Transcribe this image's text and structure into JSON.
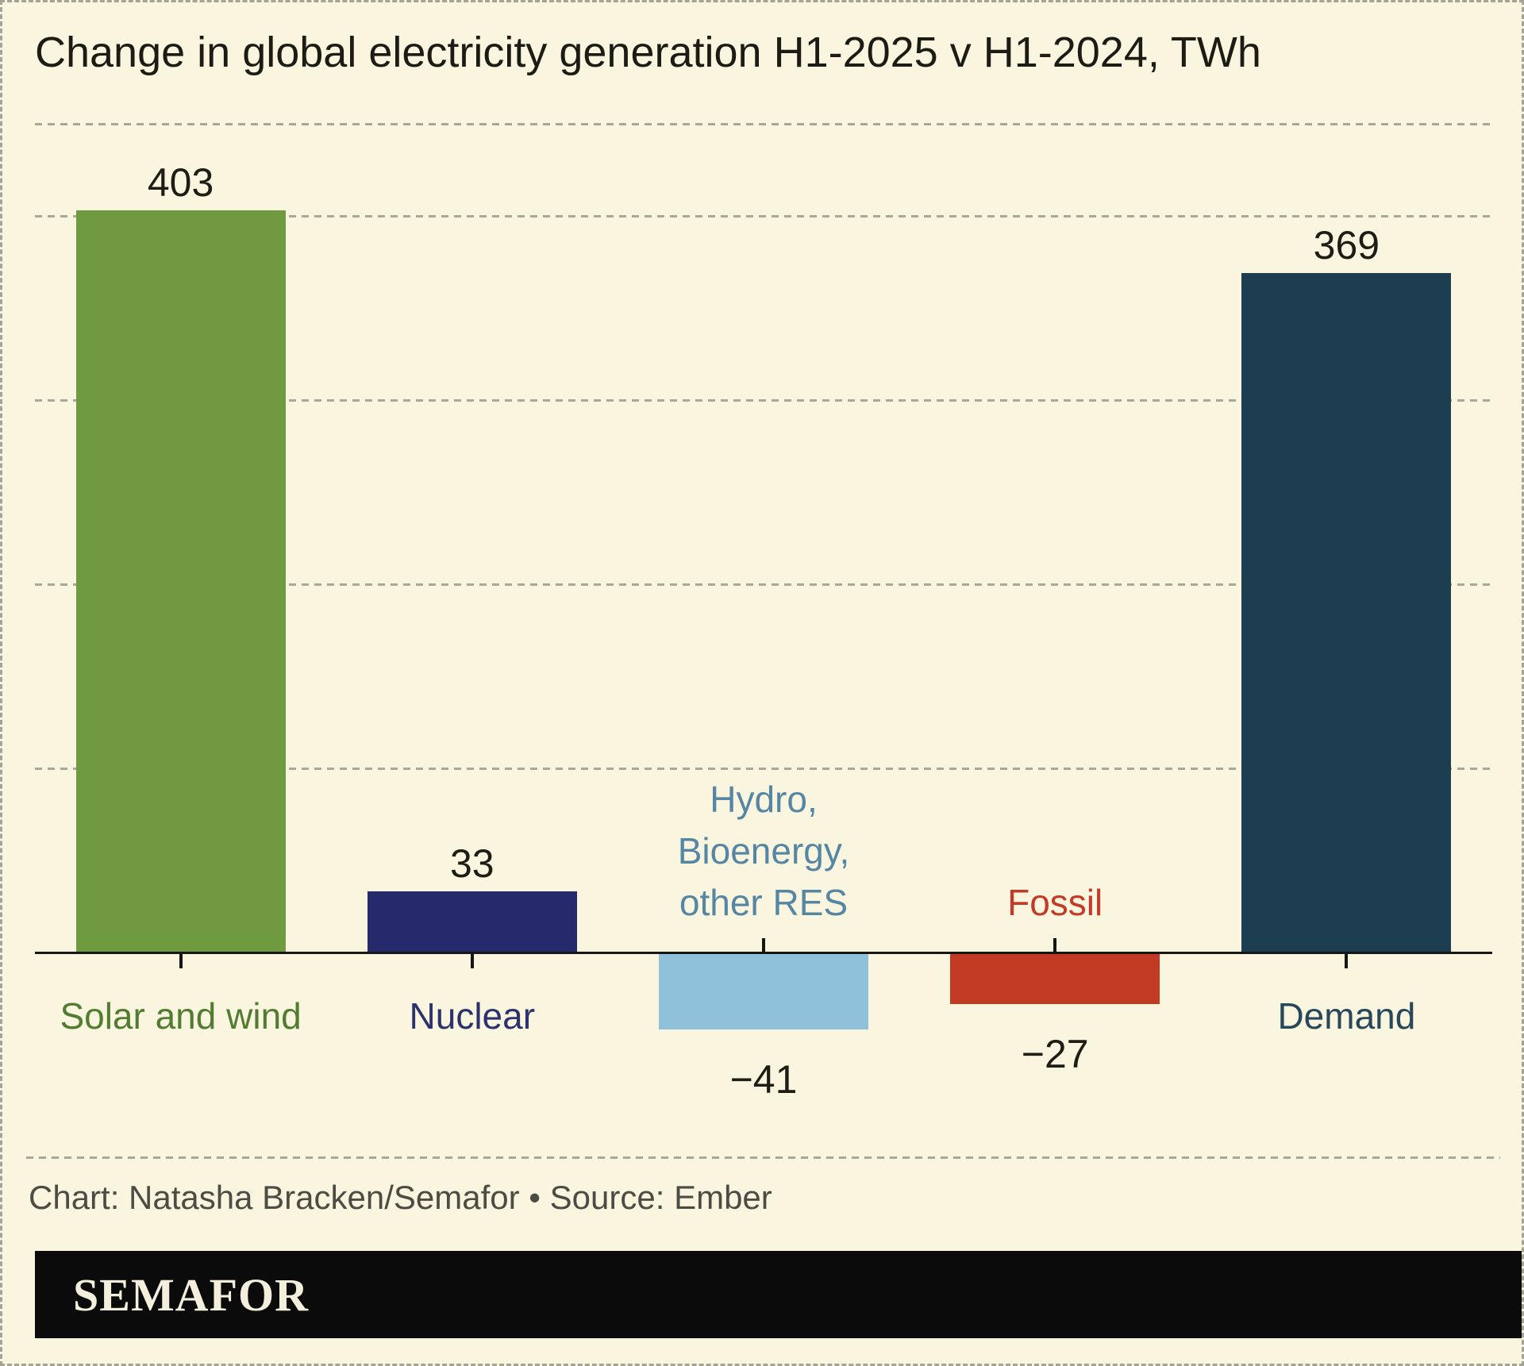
{
  "title": "Change in global electricity generation H1-2025 v H1-2024, TWh",
  "caption": "Chart: Natasha Bracken/Semafor • Source: Ember",
  "footer": {
    "logo_text": "SEMAFOR"
  },
  "colors": {
    "background": "#f9f5de",
    "axis": "#161614",
    "gridline": "#a9a79a",
    "value_label": "#1d1d15",
    "caption_text": "#4c4c44",
    "footer_bg": "#0b0b0b",
    "logo_text": "#f3efdc"
  },
  "chart_data": {
    "type": "bar",
    "title": "Change in global electricity generation H1-2025 v H1-2024, TWh",
    "unit": "TWh",
    "xlabel": "",
    "ylabel": "",
    "ylim": [
      -75,
      450
    ],
    "grid": true,
    "gridlines_twh": [
      450,
      400,
      300,
      200,
      100
    ],
    "legend": "none",
    "categories": [
      "Solar and wind",
      "Nuclear",
      "Hydro, Bioenergy, other RES",
      "Fossil",
      "Demand"
    ],
    "values": [
      403,
      33,
      -41,
      -27,
      369
    ],
    "bars": [
      {
        "category": "Solar and wind",
        "label_lines": [
          "Solar and wind"
        ],
        "value": 403,
        "value_display": "403",
        "bar_color": "#6f9a3f",
        "label_color": "#527c31"
      },
      {
        "category": "Nuclear",
        "label_lines": [
          "Nuclear"
        ],
        "value": 33,
        "value_display": "33",
        "bar_color": "#242a6b",
        "label_color": "#2c326f"
      },
      {
        "category": "Hydro, Bioenergy, other RES",
        "label_lines": [
          "Hydro,",
          "Bioenergy,",
          "other RES"
        ],
        "value": -41,
        "value_display": "−41",
        "bar_color": "#90c1da",
        "label_color": "#5586a4"
      },
      {
        "category": "Fossil",
        "label_lines": [
          "Fossil"
        ],
        "value": -27,
        "value_display": "−27",
        "bar_color": "#c23a24",
        "label_color": "#c33b26"
      },
      {
        "category": "Demand",
        "label_lines": [
          "Demand"
        ],
        "value": 369,
        "value_display": "369",
        "bar_color": "#1d3e50",
        "label_color": "#27475a"
      }
    ]
  }
}
